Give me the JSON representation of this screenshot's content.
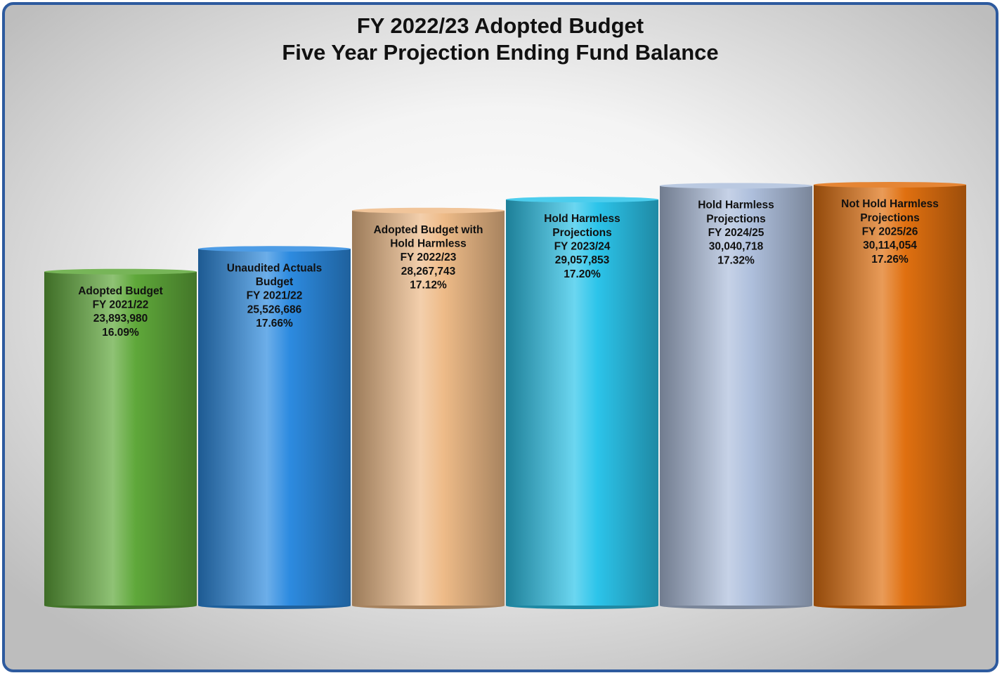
{
  "chart_data": {
    "type": "bar",
    "title": [
      "FY 2022/23 Adopted Budget",
      "Five Year Projection Ending Fund Balance"
    ],
    "categories": [
      [
        "Adopted Budget",
        "FY 2021/22"
      ],
      [
        "Unaudited Actuals",
        "Budget",
        "FY 2021/22"
      ],
      [
        "Adopted Budget with",
        "Hold Harmless",
        "FY 2022/23"
      ],
      [
        "Hold Harmless",
        "Projections",
        "FY 2023/24"
      ],
      [
        "Hold Harmless",
        "Projections",
        "FY 2024/25"
      ],
      [
        "Not Hold Harmless",
        "Projections",
        "FY 2025/26"
      ]
    ],
    "values": [
      23893980,
      25526686,
      28267743,
      29057853,
      30040718,
      30114054
    ],
    "value_labels": [
      "23,893,980",
      "25,526,686",
      "28,267,743",
      "29,057,853",
      "30,040,718",
      "30,114,054"
    ],
    "percentages": [
      16.09,
      17.66,
      17.12,
      17.2,
      17.32,
      17.26
    ],
    "percentage_labels": [
      "16.09%",
      "17.66%",
      "17.12%",
      "17.20%",
      "17.32%",
      "17.26%"
    ],
    "colors": [
      "#5fa83a",
      "#2d8be0",
      "#eebb88",
      "#2cc4ea",
      "#aebfdc",
      "#e07010"
    ]
  }
}
